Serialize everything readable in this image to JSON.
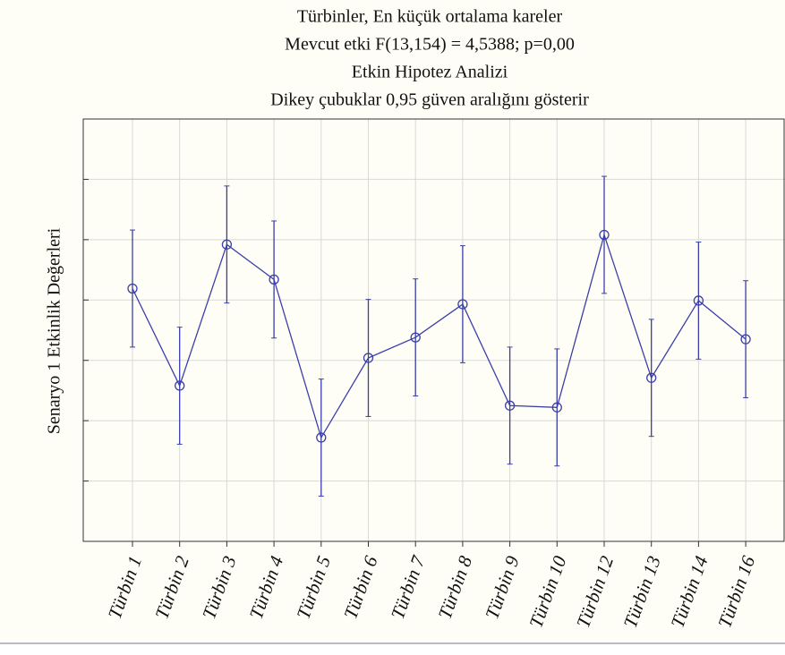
{
  "chart_data": {
    "type": "errorbar-line",
    "title": [
      "Türbinler, En küçük ortalama kareler",
      "Mevcut etki F(13,154) = 4,5388; p=0,00",
      "Etkin Hipotez Analizi",
      "Dikey çubuklar 0,95 güven aralığını gösterir"
    ],
    "ylabel": "Senaryo 1 Etkinlik Değerleri",
    "categories": [
      "Türbin 1",
      "Türbin 2",
      "Türbin 3",
      "Türbin 4",
      "Türbin 5",
      "Türbin 6",
      "Türbin 7",
      "Türbin 8",
      "Türbin 9",
      "Türbin 10",
      "Türbin 12",
      "Türbin 13",
      "Türbin 14",
      "Türbin 16"
    ],
    "values": [
      4.19,
      2.58,
      4.92,
      4.34,
      1.72,
      3.04,
      3.38,
      3.93,
      2.25,
      2.22,
      5.08,
      2.71,
      3.99,
      3.35
    ],
    "errors": [
      0.97,
      0.97,
      0.97,
      0.97,
      0.97,
      0.97,
      0.97,
      0.97,
      0.97,
      0.97,
      0.97,
      0.97,
      0.97,
      0.97
    ],
    "color": "#3a3fa8",
    "ylim": [
      0,
      7
    ],
    "yticks": [
      1,
      2,
      3,
      4,
      5,
      6
    ],
    "grid": true
  }
}
